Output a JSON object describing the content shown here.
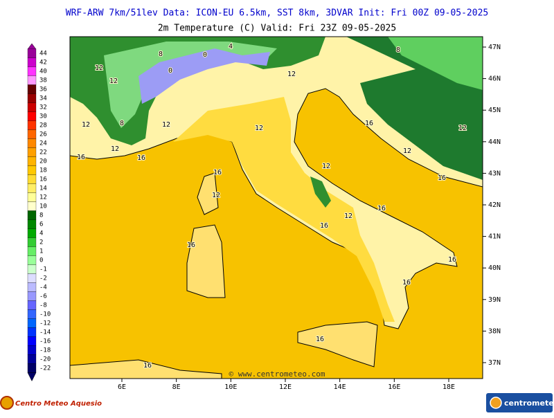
{
  "header": {
    "title": "WRF-ARW 7km/51lev  Data: ICON-EU 6.5km, SST 8km, 3DVAR  Init: Fri 00Z 09-05-2025",
    "subtitle": "2m Temperature (C)  Valid: Fri 23Z 09-05-2025"
  },
  "colorbar": {
    "levels": [
      44,
      42,
      40,
      38,
      36,
      34,
      32,
      30,
      28,
      26,
      24,
      22,
      20,
      18,
      16,
      14,
      12,
      10,
      8,
      6,
      4,
      2,
      1,
      0,
      -1,
      -2,
      -4,
      -6,
      -8,
      -10,
      -12,
      -14,
      -16,
      -18,
      -20,
      -22
    ],
    "colors": [
      "#990099",
      "#cc00cc",
      "#ff33ff",
      "#ff99ff",
      "#660000",
      "#990000",
      "#cc0000",
      "#ff0000",
      "#ff3300",
      "#ff6600",
      "#ff8800",
      "#ffa000",
      "#ffb400",
      "#ffc800",
      "#ffdc33",
      "#ffee66",
      "#ffff99",
      "#ffffcc",
      "#006600",
      "#008800",
      "#00aa00",
      "#33cc33",
      "#66ee66",
      "#99ff99",
      "#ccffcc",
      "#ddddff",
      "#bbbbff",
      "#9999ff",
      "#6666ff",
      "#3366ff",
      "#0066ff",
      "#0033ff",
      "#0000ff",
      "#0000cc",
      "#000099",
      "#000066"
    ]
  },
  "map": {
    "lon_ticks": [
      {
        "value": 6,
        "label": "6E"
      },
      {
        "value": 8,
        "label": "8E"
      },
      {
        "value": 10,
        "label": "10E"
      },
      {
        "value": 12,
        "label": "12E"
      },
      {
        "value": 14,
        "label": "14E"
      },
      {
        "value": 16,
        "label": "16E"
      },
      {
        "value": 18,
        "label": "18E"
      }
    ],
    "lat_ticks": [
      {
        "value": 47,
        "label": "47N"
      },
      {
        "value": 46,
        "label": "46N"
      },
      {
        "value": 45,
        "label": "45N"
      },
      {
        "value": 44,
        "label": "44N"
      },
      {
        "value": 43,
        "label": "43N"
      },
      {
        "value": 42,
        "label": "42N"
      },
      {
        "value": 41,
        "label": "41N"
      },
      {
        "value": 40,
        "label": "40N"
      },
      {
        "value": 39,
        "label": "39N"
      },
      {
        "value": 38,
        "label": "38N"
      },
      {
        "value": 37,
        "label": "37N"
      }
    ],
    "contour_labels": [
      12,
      12,
      12,
      8,
      4,
      0,
      0,
      8,
      12,
      12,
      12,
      16,
      16,
      16,
      12,
      12,
      12,
      16,
      16,
      16,
      16,
      12,
      16,
      16,
      16,
      16,
      16,
      8,
      12,
      12
    ],
    "watermark": "© www.centrometeo.com"
  },
  "footer": {
    "left_logo": "Centro Meteo Aquesio",
    "right_logo": "centrometeo"
  }
}
